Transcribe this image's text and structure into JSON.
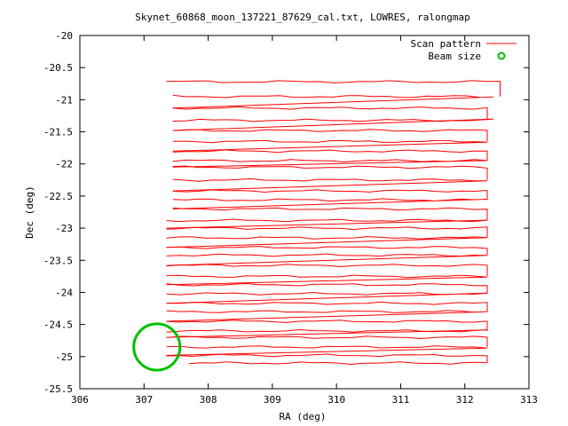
{
  "chart_data": {
    "type": "line",
    "title": "Skynet_60868_moon_137221_87629_cal.txt, LOWRES, ralongmap",
    "xlabel": "RA (deg)",
    "ylabel": "Dec (deg)",
    "xlim": [
      306,
      313
    ],
    "ylim": [
      -25.5,
      -20
    ],
    "xticks": [
      306,
      307,
      308,
      309,
      310,
      311,
      312,
      313
    ],
    "yticks": [
      -20,
      -20.5,
      -21,
      -21.5,
      -22,
      -22.5,
      -23,
      -23.5,
      -24,
      -24.5,
      -25,
      -25.5
    ],
    "grid": false,
    "legend_position": "top-right",
    "series": [
      {
        "name": "Scan pattern",
        "color": "#ff0000",
        "scan_rows": [
          {
            "dec": -20.72,
            "ra_start": 307.35,
            "ra_end": 312.55
          },
          {
            "dec": -20.95,
            "ra_start": 307.45,
            "ra_end": 312.45
          },
          {
            "dec": -21.13,
            "ra_start": 307.45,
            "ra_end": 312.35
          },
          {
            "dec": -21.32,
            "ra_start": 307.45,
            "ra_end": 312.45
          },
          {
            "dec": -21.48,
            "ra_start": 307.45,
            "ra_end": 312.35
          },
          {
            "dec": -21.65,
            "ra_start": 307.45,
            "ra_end": 312.35
          },
          {
            "dec": -21.8,
            "ra_start": 307.45,
            "ra_end": 312.35
          },
          {
            "dec": -21.95,
            "ra_start": 307.45,
            "ra_end": 312.35
          },
          {
            "dec": -22.05,
            "ra_start": 307.45,
            "ra_end": 312.35
          },
          {
            "dec": -22.25,
            "ra_start": 307.45,
            "ra_end": 312.35
          },
          {
            "dec": -22.42,
            "ra_start": 307.45,
            "ra_end": 312.35
          },
          {
            "dec": -22.56,
            "ra_start": 307.45,
            "ra_end": 312.35
          },
          {
            "dec": -22.7,
            "ra_start": 307.45,
            "ra_end": 312.35
          },
          {
            "dec": -22.88,
            "ra_start": 307.35,
            "ra_end": 312.35
          },
          {
            "dec": -23.0,
            "ra_start": 307.35,
            "ra_end": 312.35
          },
          {
            "dec": -23.15,
            "ra_start": 307.35,
            "ra_end": 312.35
          },
          {
            "dec": -23.3,
            "ra_start": 307.35,
            "ra_end": 312.35
          },
          {
            "dec": -23.42,
            "ra_start": 307.35,
            "ra_end": 312.35
          },
          {
            "dec": -23.58,
            "ra_start": 307.35,
            "ra_end": 312.35
          },
          {
            "dec": -23.75,
            "ra_start": 307.35,
            "ra_end": 312.35
          },
          {
            "dec": -23.88,
            "ra_start": 307.35,
            "ra_end": 312.35
          },
          {
            "dec": -24.02,
            "ra_start": 307.35,
            "ra_end": 312.35
          },
          {
            "dec": -24.17,
            "ra_start": 307.35,
            "ra_end": 312.35
          },
          {
            "dec": -24.3,
            "ra_start": 307.35,
            "ra_end": 312.35
          },
          {
            "dec": -24.45,
            "ra_start": 307.35,
            "ra_end": 312.35
          },
          {
            "dec": -24.6,
            "ra_start": 307.35,
            "ra_end": 312.35
          },
          {
            "dec": -24.7,
            "ra_start": 307.35,
            "ra_end": 312.35
          },
          {
            "dec": -24.85,
            "ra_start": 307.35,
            "ra_end": 312.35
          },
          {
            "dec": -24.98,
            "ra_start": 307.35,
            "ra_end": 312.35
          },
          {
            "dec": -25.1,
            "ra_start": 307.7,
            "ra_end": 312.35
          }
        ]
      },
      {
        "name": "Beam size",
        "color": "#00c000",
        "center": [
          307.2,
          -24.85
        ],
        "radius_deg": 0.36
      }
    ]
  }
}
